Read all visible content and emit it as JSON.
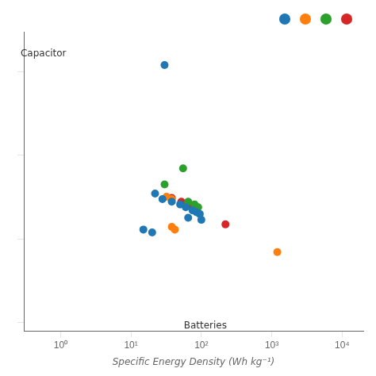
{
  "chart_data": {
    "type": "scatter",
    "xlabel": "Specific Energy Density (Wh kg⁻¹)",
    "log": true,
    "grid": false,
    "legend": "upper right",
    "tick_labels": "x",
    "xlim": [
      0.3,
      20000
    ],
    "ylim": [
      80,
      300000
    ],
    "xticks": [
      {
        "value": 1,
        "label": "10⁰"
      },
      {
        "value": 10,
        "label": "10¹"
      },
      {
        "value": 100,
        "label": "10²"
      },
      {
        "value": 1000,
        "label": "10³"
      },
      {
        "value": 10000,
        "label": "10⁴"
      }
    ],
    "yticks": [
      100,
      1000,
      10000,
      100000
    ],
    "annotations": [
      {
        "text": "Batteries",
        "x": 56.23413251903491,
        "y": 104.71285480508996
      },
      {
        "text": "Capacitor",
        "x": 0.27,
        "y": 186000
      }
    ],
    "series": [
      {
        "color": "#1f77b4",
        "x": [
          30,
          22,
          28,
          38,
          50,
          60,
          75,
          85,
          95,
          65,
          100,
          15,
          20
        ],
        "values": [
          120000,
          3500,
          3000,
          2800,
          2600,
          2400,
          2200,
          2100,
          2000,
          1800,
          1700,
          1300,
          1200
        ]
      },
      {
        "color": "#ff7f0e",
        "x": [
          32,
          38,
          38,
          42,
          1200
        ],
        "values": [
          3200,
          3000,
          1400,
          1300,
          700
        ]
      },
      {
        "color": "#2ca02c",
        "x": [
          55,
          30,
          65,
          80,
          90
        ],
        "values": [
          7000,
          4500,
          2800,
          2600,
          2400
        ]
      },
      {
        "color": "#d62728",
        "x": [
          38,
          52,
          72,
          220
        ],
        "values": [
          3100,
          2800,
          2500,
          1500
        ]
      }
    ]
  }
}
